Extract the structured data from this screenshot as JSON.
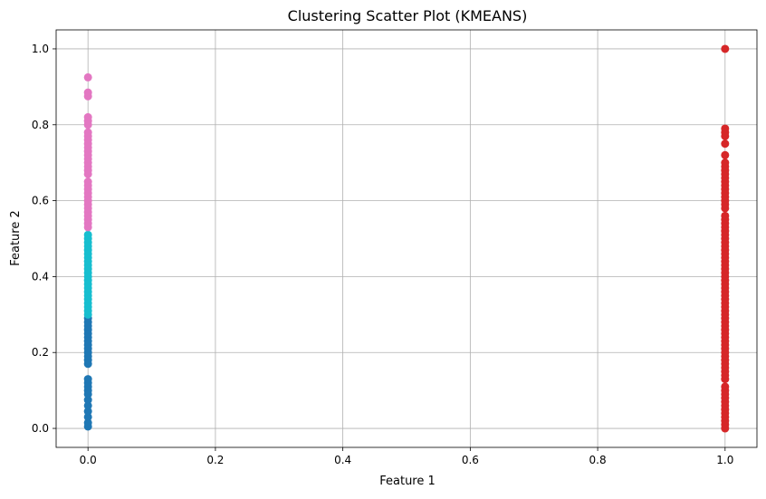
{
  "chart_data": {
    "type": "scatter",
    "title": "Clustering Scatter Plot (KMEANS)",
    "xlabel": "Feature 1",
    "ylabel": "Feature 2",
    "xlim": [
      -0.05,
      1.05
    ],
    "ylim": [
      -0.05,
      1.05
    ],
    "xticks": [
      0.0,
      0.2,
      0.4,
      0.6,
      0.8,
      1.0
    ],
    "yticks": [
      0.0,
      0.2,
      0.4,
      0.6,
      0.8,
      1.0
    ],
    "xtick_labels": [
      "0.0",
      "0.2",
      "0.4",
      "0.6",
      "0.8",
      "1.0"
    ],
    "ytick_labels": [
      "0.0",
      "0.2",
      "0.4",
      "0.6",
      "0.8",
      "1.0"
    ],
    "grid": true,
    "legend": false,
    "series": [
      {
        "color": "#1f77b4",
        "points": [
          [
            0,
            0.005
          ],
          [
            0,
            0.015
          ],
          [
            0,
            0.03
          ],
          [
            0,
            0.045
          ],
          [
            0,
            0.06
          ],
          [
            0,
            0.075
          ],
          [
            0,
            0.09
          ],
          [
            0,
            0.1
          ],
          [
            0,
            0.11
          ],
          [
            0,
            0.12
          ],
          [
            0,
            0.13
          ],
          [
            0,
            0.17
          ],
          [
            0,
            0.18
          ],
          [
            0,
            0.19
          ],
          [
            0,
            0.2
          ],
          [
            0,
            0.21
          ],
          [
            0,
            0.22
          ],
          [
            0,
            0.23
          ],
          [
            0,
            0.24
          ],
          [
            0,
            0.25
          ],
          [
            0,
            0.26
          ],
          [
            0,
            0.27
          ],
          [
            0,
            0.28
          ],
          [
            0,
            0.29
          ]
        ]
      },
      {
        "color": "#17becf",
        "points": [
          [
            0,
            0.3
          ],
          [
            0,
            0.31
          ],
          [
            0,
            0.32
          ],
          [
            0,
            0.33
          ],
          [
            0,
            0.34
          ],
          [
            0,
            0.35
          ],
          [
            0,
            0.36
          ],
          [
            0,
            0.37
          ],
          [
            0,
            0.38
          ],
          [
            0,
            0.39
          ],
          [
            0,
            0.4
          ],
          [
            0,
            0.41
          ],
          [
            0,
            0.42
          ],
          [
            0,
            0.43
          ],
          [
            0,
            0.44
          ],
          [
            0,
            0.45
          ],
          [
            0,
            0.46
          ],
          [
            0,
            0.47
          ],
          [
            0,
            0.48
          ],
          [
            0,
            0.49
          ],
          [
            0,
            0.5
          ],
          [
            0,
            0.51
          ]
        ]
      },
      {
        "color": "#e377c2",
        "points": [
          [
            0,
            0.53
          ],
          [
            0,
            0.54
          ],
          [
            0,
            0.55
          ],
          [
            0,
            0.56
          ],
          [
            0,
            0.57
          ],
          [
            0,
            0.58
          ],
          [
            0,
            0.59
          ],
          [
            0,
            0.6
          ],
          [
            0,
            0.61
          ],
          [
            0,
            0.62
          ],
          [
            0,
            0.63
          ],
          [
            0,
            0.64
          ],
          [
            0,
            0.65
          ],
          [
            0,
            0.67
          ],
          [
            0,
            0.68
          ],
          [
            0,
            0.69
          ],
          [
            0,
            0.7
          ],
          [
            0,
            0.71
          ],
          [
            0,
            0.72
          ],
          [
            0,
            0.73
          ],
          [
            0,
            0.74
          ],
          [
            0,
            0.75
          ],
          [
            0,
            0.76
          ],
          [
            0,
            0.77
          ],
          [
            0,
            0.78
          ],
          [
            0,
            0.8
          ],
          [
            0,
            0.81
          ],
          [
            0,
            0.82
          ],
          [
            0,
            0.875
          ],
          [
            0,
            0.885
          ],
          [
            0,
            0.925
          ]
        ]
      },
      {
        "color": "#d62728",
        "points": [
          [
            1,
            0.0
          ],
          [
            1,
            0.01
          ],
          [
            1,
            0.02
          ],
          [
            1,
            0.03
          ],
          [
            1,
            0.04
          ],
          [
            1,
            0.05
          ],
          [
            1,
            0.06
          ],
          [
            1,
            0.07
          ],
          [
            1,
            0.08
          ],
          [
            1,
            0.09
          ],
          [
            1,
            0.1
          ],
          [
            1,
            0.11
          ],
          [
            1,
            0.13
          ],
          [
            1,
            0.14
          ],
          [
            1,
            0.15
          ],
          [
            1,
            0.16
          ],
          [
            1,
            0.17
          ],
          [
            1,
            0.18
          ],
          [
            1,
            0.19
          ],
          [
            1,
            0.2
          ],
          [
            1,
            0.21
          ],
          [
            1,
            0.22
          ],
          [
            1,
            0.23
          ],
          [
            1,
            0.24
          ],
          [
            1,
            0.25
          ],
          [
            1,
            0.26
          ],
          [
            1,
            0.27
          ],
          [
            1,
            0.28
          ],
          [
            1,
            0.29
          ],
          [
            1,
            0.3
          ],
          [
            1,
            0.31
          ],
          [
            1,
            0.32
          ],
          [
            1,
            0.33
          ],
          [
            1,
            0.34
          ],
          [
            1,
            0.35
          ],
          [
            1,
            0.36
          ],
          [
            1,
            0.37
          ],
          [
            1,
            0.38
          ],
          [
            1,
            0.39
          ],
          [
            1,
            0.4
          ],
          [
            1,
            0.41
          ],
          [
            1,
            0.42
          ],
          [
            1,
            0.43
          ],
          [
            1,
            0.44
          ],
          [
            1,
            0.45
          ],
          [
            1,
            0.46
          ],
          [
            1,
            0.47
          ],
          [
            1,
            0.48
          ],
          [
            1,
            0.49
          ],
          [
            1,
            0.5
          ],
          [
            1,
            0.51
          ],
          [
            1,
            0.52
          ],
          [
            1,
            0.53
          ],
          [
            1,
            0.54
          ],
          [
            1,
            0.55
          ],
          [
            1,
            0.56
          ],
          [
            1,
            0.58
          ],
          [
            1,
            0.59
          ],
          [
            1,
            0.6
          ],
          [
            1,
            0.61
          ],
          [
            1,
            0.62
          ],
          [
            1,
            0.63
          ],
          [
            1,
            0.64
          ],
          [
            1,
            0.65
          ],
          [
            1,
            0.66
          ],
          [
            1,
            0.67
          ],
          [
            1,
            0.68
          ],
          [
            1,
            0.69
          ],
          [
            1,
            0.7
          ],
          [
            1,
            0.72
          ],
          [
            1,
            0.75
          ],
          [
            1,
            0.77
          ],
          [
            1,
            0.78
          ],
          [
            1,
            0.79
          ],
          [
            1,
            1.0
          ]
        ]
      }
    ]
  }
}
